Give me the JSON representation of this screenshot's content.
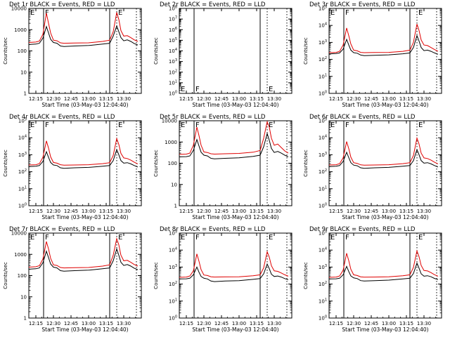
{
  "page": {
    "title": "RHESSI detector count rates (Events vs LLD), 03-May-03"
  },
  "colors": {
    "events": "#000000",
    "lld": "#e00000",
    "background": "#ffffff",
    "axis": "#000000"
  },
  "chart_data": [
    {
      "type": "line",
      "title": "Det 1r BLACK = Events, RED = LLD",
      "xlabel": "Start Time (03-May-03 12:04:40)",
      "ylabel": "Counts/sec",
      "xlim": [
        12.15,
        13.75
      ],
      "ylim": [
        1,
        10000
      ],
      "yscale": "log",
      "x_ticks": [
        "12:15",
        "12:30",
        "12:45",
        "13:00",
        "13:15",
        "13:30"
      ],
      "y_ticks": [
        "1",
        "10",
        "100",
        "1000",
        "10000"
      ],
      "annotations": [
        {
          "text": "E",
          "x": 12.15
        },
        {
          "text": "F",
          "x": 12.36
        },
        {
          "text": "E",
          "x": 13.4
        }
      ],
      "vlines_solid": [
        12.36,
        13.3
      ],
      "vlines_dotted": [
        13.4,
        13.68
      ],
      "x": [
        12.15,
        12.25,
        12.3,
        12.35,
        12.4,
        12.43,
        12.46,
        12.5,
        12.55,
        12.6,
        12.65,
        12.8,
        13.0,
        13.2,
        13.3,
        13.35,
        13.4,
        13.43,
        13.46,
        13.5,
        13.55,
        13.6,
        13.65,
        13.7
      ],
      "series": [
        {
          "name": "Events",
          "values": [
            200,
            210,
            230,
            400,
            1400,
            700,
            350,
            250,
            230,
            170,
            160,
            170,
            180,
            210,
            230,
            500,
            1500,
            800,
            420,
            300,
            330,
            280,
            220,
            190
          ]
        },
        {
          "name": "LLD",
          "values": [
            250,
            260,
            290,
            600,
            6000,
            2000,
            700,
            320,
            300,
            240,
            230,
            235,
            240,
            280,
            320,
            800,
            6500,
            3000,
            900,
            500,
            520,
            420,
            330,
            280
          ]
        }
      ]
    },
    {
      "type": "line",
      "title": "Det 2r BLACK = Events, RED = LLD",
      "xlabel": "Start Time (03-May-03 12:04:40)",
      "ylabel": "Counts/sec",
      "xlim": [
        12.15,
        13.75
      ],
      "ylim": [
        1,
        100000000
      ],
      "yscale": "log",
      "x_ticks": [
        "12:15",
        "12:30",
        "12:45",
        "13:00",
        "13:15",
        "13:30"
      ],
      "y_ticks": [
        "10^0",
        "10^1",
        "10^2",
        "10^3",
        "10^4",
        "10^5",
        "10^6",
        "10^7",
        "10^8"
      ],
      "annotations": [
        {
          "text": "E",
          "x": 12.15
        },
        {
          "text": "F",
          "x": 12.36
        },
        {
          "text": "E",
          "x": 13.4
        }
      ],
      "vlines_solid": [
        12.36,
        13.3
      ],
      "vlines_dotted": [
        13.4,
        13.68
      ],
      "x": [],
      "series": []
    },
    {
      "type": "line",
      "title": "Det 3r BLACK = Events, RED = LLD",
      "xlabel": "Start Time (03-May-03 12:04:40)",
      "ylabel": "Counts/sec",
      "xlim": [
        12.15,
        13.75
      ],
      "ylim": [
        1,
        100000
      ],
      "yscale": "log",
      "x_ticks": [
        "12:15",
        "12:30",
        "12:45",
        "13:00",
        "13:15",
        "13:30"
      ],
      "y_ticks": [
        "10^0",
        "10^1",
        "10^2",
        "10^3",
        "10^4",
        "10^5"
      ],
      "annotations": [
        {
          "text": "E",
          "x": 12.15
        },
        {
          "text": "F",
          "x": 12.36
        },
        {
          "text": "E",
          "x": 13.4
        }
      ],
      "vlines_solid": [
        12.36,
        13.3
      ],
      "vlines_dotted": [
        13.4,
        13.68
      ],
      "x": [
        12.15,
        12.25,
        12.3,
        12.35,
        12.4,
        12.43,
        12.46,
        12.5,
        12.55,
        12.6,
        12.65,
        12.8,
        13.0,
        13.2,
        13.3,
        13.35,
        13.4,
        13.43,
        13.46,
        13.5,
        13.55,
        13.6,
        13.65,
        13.7
      ],
      "series": [
        {
          "name": "Events",
          "values": [
            210,
            220,
            240,
            400,
            1500,
            700,
            350,
            250,
            230,
            180,
            165,
            175,
            185,
            215,
            240,
            500,
            2500,
            1200,
            500,
            330,
            350,
            300,
            240,
            200
          ]
        },
        {
          "name": "LLD",
          "values": [
            250,
            260,
            300,
            700,
            7000,
            2500,
            800,
            350,
            320,
            260,
            250,
            255,
            260,
            300,
            350,
            1000,
            12000,
            5000,
            1400,
            700,
            650,
            500,
            380,
            300
          ]
        }
      ]
    },
    {
      "type": "line",
      "title": "Det 4r BLACK = Events, RED = LLD",
      "xlabel": "Start Time (03-May-03 12:04:40)",
      "ylabel": "Counts/sec",
      "xlim": [
        12.15,
        13.75
      ],
      "ylim": [
        1,
        100000
      ],
      "yscale": "log",
      "x_ticks": [
        "12:15",
        "12:30",
        "12:45",
        "13:00",
        "13:15",
        "13:30"
      ],
      "y_ticks": [
        "10^0",
        "10^1",
        "10^2",
        "10^3",
        "10^4",
        "10^5"
      ],
      "annotations": [
        {
          "text": "E",
          "x": 12.15
        },
        {
          "text": "F",
          "x": 12.36
        },
        {
          "text": "E",
          "x": 13.4
        }
      ],
      "vlines_solid": [
        12.36,
        13.3
      ],
      "vlines_dotted": [
        13.4,
        13.68
      ],
      "x": [
        12.15,
        12.25,
        12.3,
        12.35,
        12.4,
        12.43,
        12.46,
        12.5,
        12.55,
        12.6,
        12.65,
        12.8,
        13.0,
        13.2,
        13.3,
        13.35,
        13.4,
        13.43,
        13.46,
        13.5,
        13.55,
        13.6,
        13.65,
        13.7
      ],
      "series": [
        {
          "name": "Events",
          "values": [
            200,
            210,
            230,
            400,
            1500,
            700,
            350,
            250,
            230,
            170,
            160,
            170,
            180,
            210,
            230,
            450,
            2000,
            1000,
            450,
            320,
            340,
            290,
            230,
            190
          ]
        },
        {
          "name": "LLD",
          "values": [
            250,
            260,
            300,
            700,
            6500,
            2500,
            750,
            350,
            320,
            260,
            245,
            250,
            260,
            300,
            340,
            900,
            9000,
            4000,
            1200,
            650,
            600,
            480,
            360,
            290
          ]
        }
      ]
    },
    {
      "type": "line",
      "title": "Det 5r BLACK = Events, RED = LLD",
      "xlabel": "Start Time (03-May-03 12:04:40)",
      "ylabel": "Counts/sec",
      "xlim": [
        12.15,
        13.75
      ],
      "ylim": [
        1,
        10000
      ],
      "yscale": "log",
      "x_ticks": [
        "12:15",
        "12:30",
        "12:45",
        "13:00",
        "13:15",
        "13:30"
      ],
      "y_ticks": [
        "1",
        "10",
        "100",
        "1000",
        "10000"
      ],
      "annotations": [
        {
          "text": "E",
          "x": 12.15
        },
        {
          "text": "F",
          "x": 12.36
        },
        {
          "text": "E",
          "x": 13.4
        }
      ],
      "vlines_solid": [
        12.36,
        13.3
      ],
      "vlines_dotted": [
        13.4,
        13.68
      ],
      "x": [
        12.15,
        12.25,
        12.3,
        12.35,
        12.4,
        12.43,
        12.46,
        12.5,
        12.55,
        12.6,
        12.65,
        12.8,
        13.0,
        13.2,
        13.3,
        13.35,
        13.4,
        13.43,
        13.46,
        13.5,
        13.55,
        13.6,
        13.65,
        13.7
      ],
      "series": [
        {
          "name": "Events",
          "values": [
            200,
            205,
            220,
            400,
            1300,
            650,
            330,
            240,
            220,
            170,
            160,
            170,
            180,
            210,
            240,
            600,
            2500,
            1200,
            500,
            320,
            360,
            300,
            240,
            200
          ]
        },
        {
          "name": "LLD",
          "values": [
            260,
            270,
            300,
            700,
            5000,
            2000,
            700,
            340,
            320,
            280,
            270,
            280,
            290,
            330,
            400,
            1500,
            9000,
            5000,
            1500,
            700,
            800,
            550,
            380,
            300
          ]
        }
      ]
    },
    {
      "type": "line",
      "title": "Det 6r BLACK = Events, RED = LLD",
      "xlabel": "Start Time (03-May-03 12:04:40)",
      "ylabel": "Counts/sec",
      "xlim": [
        12.15,
        13.75
      ],
      "ylim": [
        1,
        100000
      ],
      "yscale": "log",
      "x_ticks": [
        "12:15",
        "12:30",
        "12:45",
        "13:00",
        "13:15",
        "13:30"
      ],
      "y_ticks": [
        "10^0",
        "10^1",
        "10^2",
        "10^3",
        "10^4",
        "10^5"
      ],
      "annotations": [
        {
          "text": "E",
          "x": 12.15
        },
        {
          "text": "F",
          "x": 12.36
        },
        {
          "text": "E",
          "x": 13.4
        }
      ],
      "vlines_solid": [
        12.36,
        13.3
      ],
      "vlines_dotted": [
        13.4,
        13.68
      ],
      "x": [
        12.15,
        12.25,
        12.3,
        12.35,
        12.4,
        12.43,
        12.46,
        12.5,
        12.55,
        12.6,
        12.65,
        12.8,
        13.0,
        13.2,
        13.3,
        13.35,
        13.4,
        13.43,
        13.46,
        13.5,
        13.55,
        13.6,
        13.65,
        13.7
      ],
      "series": [
        {
          "name": "Events",
          "values": [
            200,
            210,
            230,
            400,
            1400,
            680,
            340,
            245,
            225,
            170,
            160,
            170,
            180,
            210,
            230,
            450,
            2000,
            1000,
            450,
            320,
            340,
            290,
            230,
            190
          ]
        },
        {
          "name": "LLD",
          "values": [
            250,
            260,
            300,
            650,
            6000,
            2300,
            720,
            340,
            310,
            255,
            245,
            250,
            260,
            300,
            340,
            900,
            9500,
            4200,
            1250,
            650,
            600,
            480,
            360,
            290
          ]
        }
      ]
    },
    {
      "type": "line",
      "title": "Det 7r BLACK = Events, RED = LLD",
      "xlabel": "Start Time (03-May-03 12:04:40)",
      "ylabel": "Counts/sec",
      "xlim": [
        12.15,
        13.75
      ],
      "ylim": [
        1,
        10000
      ],
      "yscale": "log",
      "x_ticks": [
        "12:15",
        "12:30",
        "12:45",
        "13:00",
        "13:15",
        "13:30"
      ],
      "y_ticks": [
        "1",
        "10",
        "100",
        "1000",
        "10000"
      ],
      "annotations": [
        {
          "text": "E",
          "x": 12.15
        },
        {
          "text": "F",
          "x": 12.36
        },
        {
          "text": "E",
          "x": 13.4
        }
      ],
      "vlines_solid": [
        12.36,
        13.3
      ],
      "vlines_dotted": [
        13.4,
        13.68
      ],
      "x": [
        12.15,
        12.25,
        12.3,
        12.35,
        12.4,
        12.43,
        12.46,
        12.5,
        12.55,
        12.6,
        12.65,
        12.8,
        13.0,
        13.2,
        13.3,
        13.35,
        13.4,
        13.43,
        13.46,
        13.5,
        13.55,
        13.6,
        13.65,
        13.7
      ],
      "series": [
        {
          "name": "Events",
          "values": [
            200,
            210,
            230,
            400,
            1400,
            700,
            350,
            250,
            230,
            170,
            160,
            170,
            180,
            210,
            230,
            500,
            1800,
            900,
            420,
            300,
            330,
            280,
            220,
            190
          ]
        },
        {
          "name": "LLD",
          "values": [
            250,
            260,
            290,
            600,
            4000,
            1800,
            650,
            320,
            300,
            240,
            230,
            235,
            240,
            280,
            320,
            900,
            5500,
            2800,
            900,
            500,
            520,
            420,
            330,
            280
          ]
        }
      ]
    },
    {
      "type": "line",
      "title": "Det 8r BLACK = Events, RED = LLD",
      "xlabel": "Start Time (03-May-03 12:04:40)",
      "ylabel": "Counts/sec",
      "xlim": [
        12.15,
        13.75
      ],
      "ylim": [
        1,
        100000
      ],
      "yscale": "log",
      "x_ticks": [
        "12:15",
        "12:30",
        "12:45",
        "13:00",
        "13:15",
        "13:30"
      ],
      "y_ticks": [
        "10^0",
        "10^1",
        "10^2",
        "10^3",
        "10^4",
        "10^5"
      ],
      "annotations": [
        {
          "text": "E",
          "x": 12.15
        },
        {
          "text": "F",
          "x": 12.36
        },
        {
          "text": "E",
          "x": 13.4
        }
      ],
      "vlines_solid": [
        12.36,
        13.3
      ],
      "vlines_dotted": [
        13.4,
        13.68
      ],
      "x": [
        12.15,
        12.25,
        12.3,
        12.35,
        12.4,
        12.43,
        12.46,
        12.5,
        12.55,
        12.6,
        12.65,
        12.8,
        13.0,
        13.2,
        13.3,
        13.35,
        13.4,
        13.43,
        13.46,
        13.5,
        13.55,
        13.6,
        13.65,
        13.7
      ],
      "series": [
        {
          "name": "Events",
          "values": [
            200,
            205,
            220,
            350,
            1000,
            500,
            280,
            220,
            200,
            150,
            140,
            150,
            160,
            190,
            210,
            400,
            1500,
            800,
            380,
            280,
            300,
            260,
            210,
            180
          ]
        },
        {
          "name": "LLD",
          "values": [
            250,
            260,
            300,
            600,
            6000,
            2200,
            700,
            340,
            320,
            270,
            260,
            265,
            270,
            310,
            350,
            900,
            8000,
            3800,
            1200,
            600,
            560,
            450,
            350,
            290
          ]
        }
      ]
    },
    {
      "type": "line",
      "title": "Det 9r BLACK = Events, RED = LLD",
      "xlabel": "Start Time (03-May-03 12:04:40)",
      "ylabel": "Counts/sec",
      "xlim": [
        12.15,
        13.75
      ],
      "ylim": [
        1,
        100000
      ],
      "yscale": "log",
      "x_ticks": [
        "12:15",
        "12:30",
        "12:45",
        "13:00",
        "13:15",
        "13:30"
      ],
      "y_ticks": [
        "10^0",
        "10^1",
        "10^2",
        "10^3",
        "10^4",
        "10^5"
      ],
      "annotations": [
        {
          "text": "E",
          "x": 12.15
        },
        {
          "text": "F",
          "x": 12.36
        },
        {
          "text": "E",
          "x": 13.4
        }
      ],
      "vlines_solid": [
        12.36,
        13.3
      ],
      "vlines_dotted": [
        13.4,
        13.68
      ],
      "x": [
        12.15,
        12.25,
        12.3,
        12.35,
        12.4,
        12.43,
        12.46,
        12.5,
        12.55,
        12.6,
        12.65,
        12.8,
        13.0,
        13.2,
        13.3,
        13.35,
        13.4,
        13.43,
        13.46,
        13.5,
        13.55,
        13.6,
        13.65,
        13.7
      ],
      "series": [
        {
          "name": "Events",
          "values": [
            200,
            205,
            220,
            350,
            1100,
            550,
            300,
            230,
            210,
            160,
            150,
            160,
            170,
            200,
            220,
            420,
            1700,
            850,
            400,
            290,
            310,
            270,
            215,
            185
          ]
        },
        {
          "name": "LLD",
          "values": [
            250,
            260,
            300,
            650,
            6500,
            2400,
            740,
            350,
            320,
            265,
            255,
            260,
            270,
            310,
            350,
            950,
            9000,
            4000,
            1250,
            630,
            590,
            470,
            355,
            290
          ]
        }
      ]
    }
  ]
}
